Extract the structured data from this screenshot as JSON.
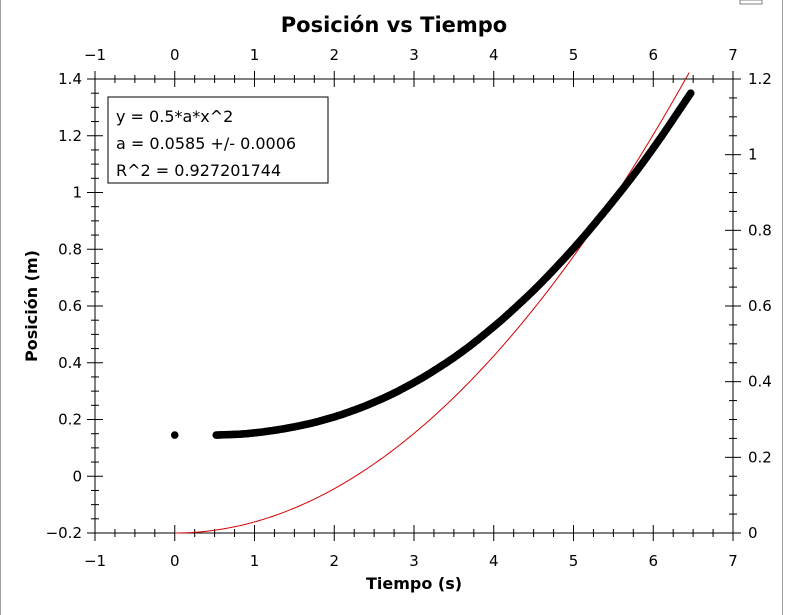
{
  "chart_data": {
    "type": "scatter",
    "title": "Posición vs Tiempo",
    "xlabel": "Tiempo (s)",
    "ylabel": "Posición (m)",
    "xlim": [
      -1,
      7
    ],
    "ylim": [
      -0.2,
      1.4
    ],
    "y2lim": [
      0,
      1.2
    ],
    "x_ticks": [
      "−1",
      "0",
      "1",
      "2",
      "3",
      "4",
      "5",
      "6",
      "7"
    ],
    "y_ticks": [
      "−0.2",
      "0",
      "0.2",
      "0.4",
      "0.6",
      "0.8",
      "1",
      "1.2",
      "1.4"
    ],
    "y2_ticks": [
      "0",
      "0.2",
      "0.4",
      "0.6",
      "0.8",
      "1",
      "1.2"
    ],
    "grid": false,
    "fit_box": {
      "lines": [
        "y = 0.5*a*x^2",
        "a = 0.0585 +/- 0.0006",
        "R^2 = 0.927201744"
      ]
    },
    "series": [
      {
        "type": "scatter",
        "color": "#000000",
        "x": [
          0.0,
          0.52,
          0.6,
          0.7,
          0.8,
          0.9,
          1.0,
          1.1,
          1.2,
          1.3,
          1.4,
          1.5,
          1.6,
          1.7,
          1.8,
          1.9,
          2.0,
          2.1,
          2.2,
          2.3,
          2.4,
          2.5,
          2.6,
          2.7,
          2.8,
          2.9,
          3.0,
          3.1,
          3.2,
          3.3,
          3.4,
          3.5,
          3.6,
          3.7,
          3.8,
          3.9,
          4.0,
          4.1,
          4.2,
          4.3,
          4.4,
          4.5,
          4.6,
          4.7,
          4.8,
          4.9,
          5.0,
          5.1,
          5.2,
          5.3,
          5.4,
          5.5,
          5.6,
          5.7,
          5.8,
          5.9,
          6.0,
          6.1,
          6.2,
          6.3,
          6.4,
          6.47
        ],
        "y": [
          0.145,
          0.145,
          0.146,
          0.147,
          0.148,
          0.15,
          0.153,
          0.156,
          0.16,
          0.164,
          0.169,
          0.174,
          0.18,
          0.186,
          0.193,
          0.201,
          0.209,
          0.218,
          0.228,
          0.238,
          0.249,
          0.261,
          0.273,
          0.286,
          0.3,
          0.315,
          0.33,
          0.346,
          0.363,
          0.381,
          0.399,
          0.418,
          0.438,
          0.459,
          0.481,
          0.504,
          0.527,
          0.551,
          0.576,
          0.602,
          0.628,
          0.655,
          0.683,
          0.712,
          0.742,
          0.772,
          0.803,
          0.835,
          0.868,
          0.902,
          0.936,
          0.971,
          1.006,
          1.042,
          1.079,
          1.117,
          1.156,
          1.196,
          1.237,
          1.279,
          1.321,
          1.35
        ]
      },
      {
        "type": "line",
        "color": "#d40000",
        "function": "y = 0.5*a*x^2",
        "a": 0.0585,
        "axis": "right",
        "x_range": [
          0,
          6.45
        ]
      }
    ]
  }
}
